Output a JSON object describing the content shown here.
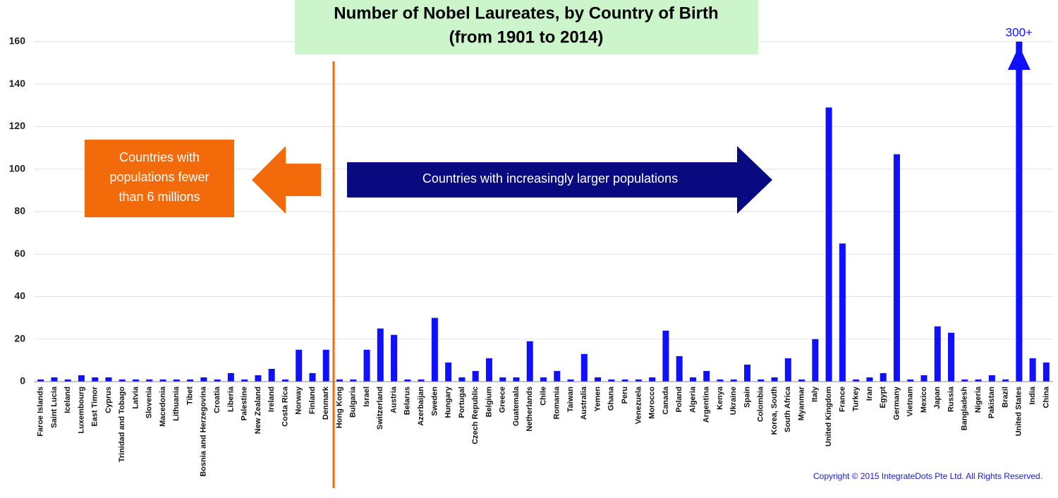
{
  "chart_data": {
    "type": "bar",
    "title": [
      "Number of Nobel Laureates, by Country of Birth",
      "(from 1901 to 2014)"
    ],
    "annotations": {
      "left_box": [
        "Countries with",
        "populations fewer",
        "than 6 millions"
      ],
      "right_arrow": "Countries with increasingly larger populations",
      "copyright": "Copyright © 2015 IntegrateDots Pte Ltd. All Rights Reserved."
    },
    "categories": [
      "Faroe Islands",
      "Saint Lucia",
      "Iceland",
      "Luxembourg",
      "East Timor",
      "Cyprus",
      "Trinidad and Tobago",
      "Latvia",
      "Slovenia",
      "Macedonia",
      "Lithuania",
      "Tibet",
      "Bosnia and Herzegovina",
      "Croatia",
      "Liberia",
      "Palestine",
      "New Zealand",
      "Ireland",
      "Costa Rica",
      "Norway",
      "Finland",
      "Denmark",
      "Hong Kong",
      "Bulgaria",
      "Israel",
      "Switzerland",
      "Austria",
      "Belarus",
      "Azerbaijan",
      "Sweden",
      "Hungary",
      "Portugal",
      "Czech Republic",
      "Belgium",
      "Greece",
      "Guatemala",
      "Netherlands",
      "Chile",
      "Romania",
      "Taiwan",
      "Australia",
      "Yemen",
      "Ghana",
      "Peru",
      "Venezuela",
      "Morocco",
      "Canada",
      "Poland",
      "Algeria",
      "Argentina",
      "Kenya",
      "Ukraine",
      "Spain",
      "Colombia",
      "Korea, South",
      "South Africa",
      "Myanmar",
      "Italy",
      "United Kingdom",
      "France",
      "Turkey",
      "Iran",
      "Egypt",
      "Germany",
      "Vietnam",
      "Mexico",
      "Japan",
      "Russia",
      "Bangladesh",
      "Nigeria",
      "Pakistan",
      "Brazil",
      "United States",
      "India",
      "China"
    ],
    "values": [
      1,
      2,
      1,
      3,
      2,
      2,
      1,
      1,
      1,
      1,
      1,
      1,
      2,
      1,
      4,
      1,
      3,
      6,
      1,
      15,
      4,
      15,
      1,
      1,
      15,
      25,
      22,
      1,
      1,
      30,
      9,
      2,
      5,
      11,
      2,
      2,
      19,
      2,
      5,
      1,
      13,
      2,
      1,
      1,
      1,
      2,
      24,
      12,
      2,
      5,
      1,
      1,
      8,
      1,
      2,
      11,
      1,
      20,
      129,
      65,
      1,
      2,
      4,
      107,
      1,
      3,
      26,
      23,
      1,
      1,
      3,
      1,
      300,
      11,
      9
    ],
    "value_labels": [
      null,
      null,
      null,
      null,
      null,
      null,
      null,
      null,
      null,
      null,
      null,
      null,
      null,
      null,
      null,
      null,
      null,
      null,
      null,
      null,
      null,
      null,
      null,
      null,
      null,
      null,
      null,
      null,
      null,
      null,
      null,
      null,
      null,
      null,
      null,
      null,
      null,
      null,
      null,
      null,
      null,
      null,
      null,
      null,
      null,
      null,
      null,
      null,
      null,
      null,
      null,
      null,
      null,
      null,
      null,
      null,
      null,
      null,
      null,
      null,
      null,
      null,
      null,
      null,
      null,
      null,
      null,
      null,
      null,
      null,
      null,
      null,
      "300+",
      null,
      null
    ],
    "color": "#1010ff",
    "ylim": [
      0,
      160
    ],
    "yticks": [
      0,
      20,
      40,
      60,
      80,
      100,
      120,
      140,
      160
    ],
    "grid": true
  }
}
